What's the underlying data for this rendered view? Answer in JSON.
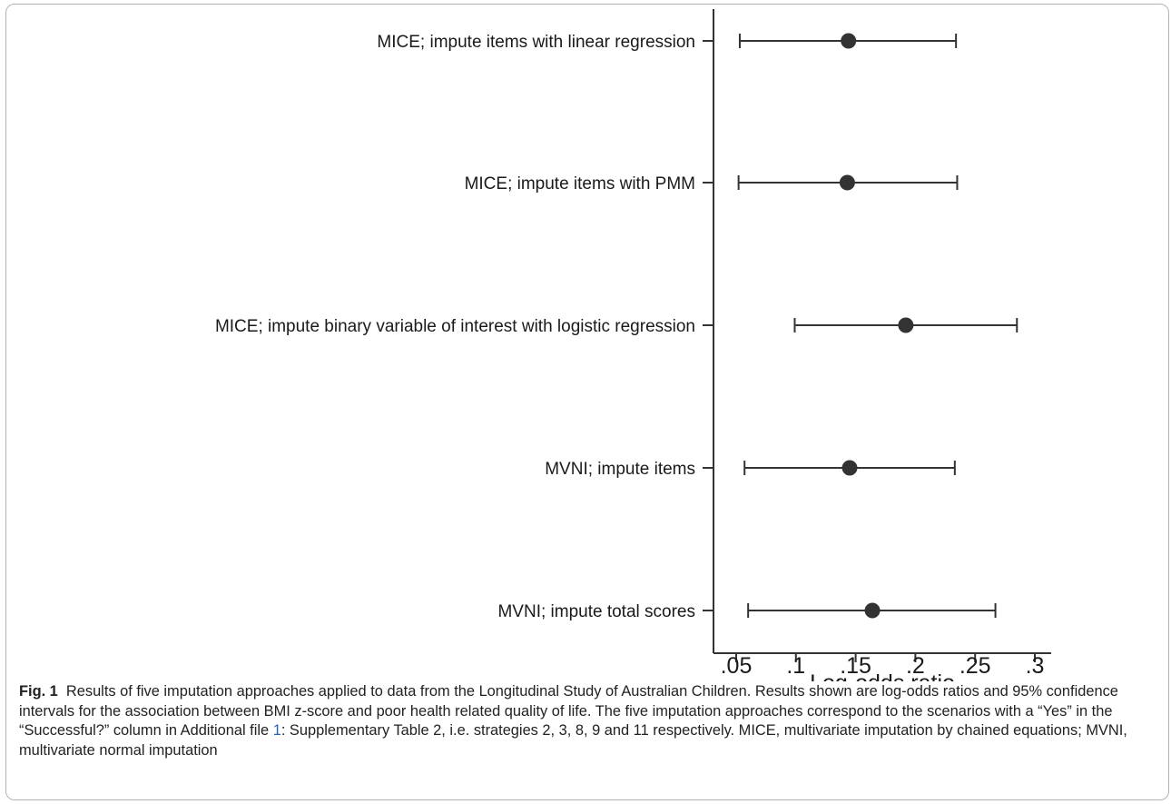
{
  "chart_data": {
    "type": "forest",
    "title": "",
    "xlabel": "Log-odds ratio",
    "ylabel": "",
    "xlim": [
      0.04,
      0.31
    ],
    "x_ticks": [
      0.05,
      0.1,
      0.15,
      0.2,
      0.25,
      0.3
    ],
    "x_tick_labels": [
      ".05",
      ".1",
      ".15",
      ".2",
      ".25",
      ".3"
    ],
    "grid": false,
    "legend": "none",
    "marker_color": "#333333",
    "line_color": "#333333",
    "rows": [
      {
        "label": "MICE; impute items with linear regression",
        "estimate": 0.144,
        "lower": 0.053,
        "upper": 0.234
      },
      {
        "label": "MICE; impute items with PMM",
        "estimate": 0.143,
        "lower": 0.052,
        "upper": 0.235
      },
      {
        "label": "MICE; impute binary variable of interest with logistic regression",
        "estimate": 0.192,
        "lower": 0.099,
        "upper": 0.285
      },
      {
        "label": "MVNI; impute items",
        "estimate": 0.145,
        "lower": 0.057,
        "upper": 0.233
      },
      {
        "label": "MVNI; impute total scores",
        "estimate": 0.164,
        "lower": 0.06,
        "upper": 0.267
      }
    ]
  },
  "caption": {
    "fig_label": "Fig. 1",
    "text_before_link": "Results of five imputation approaches applied to data from the Longitudinal Study of Australian Children. Results shown are log-odds ratios and 95% confidence intervals for the association between BMI z-score and poor health related quality of life. The five imputation approaches correspond to the scenarios with a “Yes” in the “Successful?” column in Additional file ",
    "link_text": "1",
    "text_after_link": ": Supplementary Table 2, i.e. strategies 2, 3, 8, 9 and 11 respectively. MICE, multivariate imputation by chained equations; MVNI, multivariate normal imputation"
  }
}
